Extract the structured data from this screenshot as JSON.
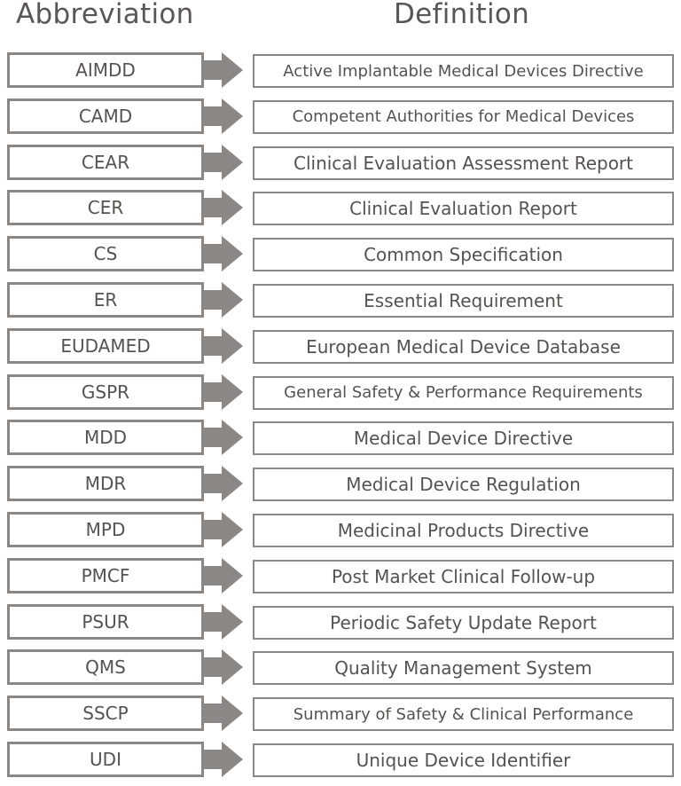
{
  "headers": {
    "abbreviation": "Abbreviation",
    "definition": "Definition"
  },
  "arrow_color": "#8b8784",
  "rows": [
    {
      "abbr": "AIMDD",
      "definition": "Active Implantable Medical Devices Directive"
    },
    {
      "abbr": "CAMD",
      "definition": "Competent Authorities for Medical Devices"
    },
    {
      "abbr": "CEAR",
      "definition": "Clinical Evaluation Assessment Report"
    },
    {
      "abbr": "CER",
      "definition": "Clinical Evaluation Report"
    },
    {
      "abbr": "CS",
      "definition": "Common Specification"
    },
    {
      "abbr": "ER",
      "definition": "Essential Requirement"
    },
    {
      "abbr": "EUDAMED",
      "definition": "European Medical Device Database"
    },
    {
      "abbr": "GSPR",
      "definition": "General Safety & Performance Requirements"
    },
    {
      "abbr": "MDD",
      "definition": "Medical Device Directive"
    },
    {
      "abbr": "MDR",
      "definition": "Medical Device Regulation"
    },
    {
      "abbr": "MPD",
      "definition": "Medicinal Products Directive"
    },
    {
      "abbr": "PMCF",
      "definition": "Post Market Clinical Follow-up"
    },
    {
      "abbr": "PSUR",
      "definition": "Periodic Safety Update Report"
    },
    {
      "abbr": "QMS",
      "definition": "Quality Management System"
    },
    {
      "abbr": "SSCP",
      "definition": "Summary of Safety & Clinical Performance"
    },
    {
      "abbr": "UDI",
      "definition": "Unique Device Identifier"
    }
  ]
}
